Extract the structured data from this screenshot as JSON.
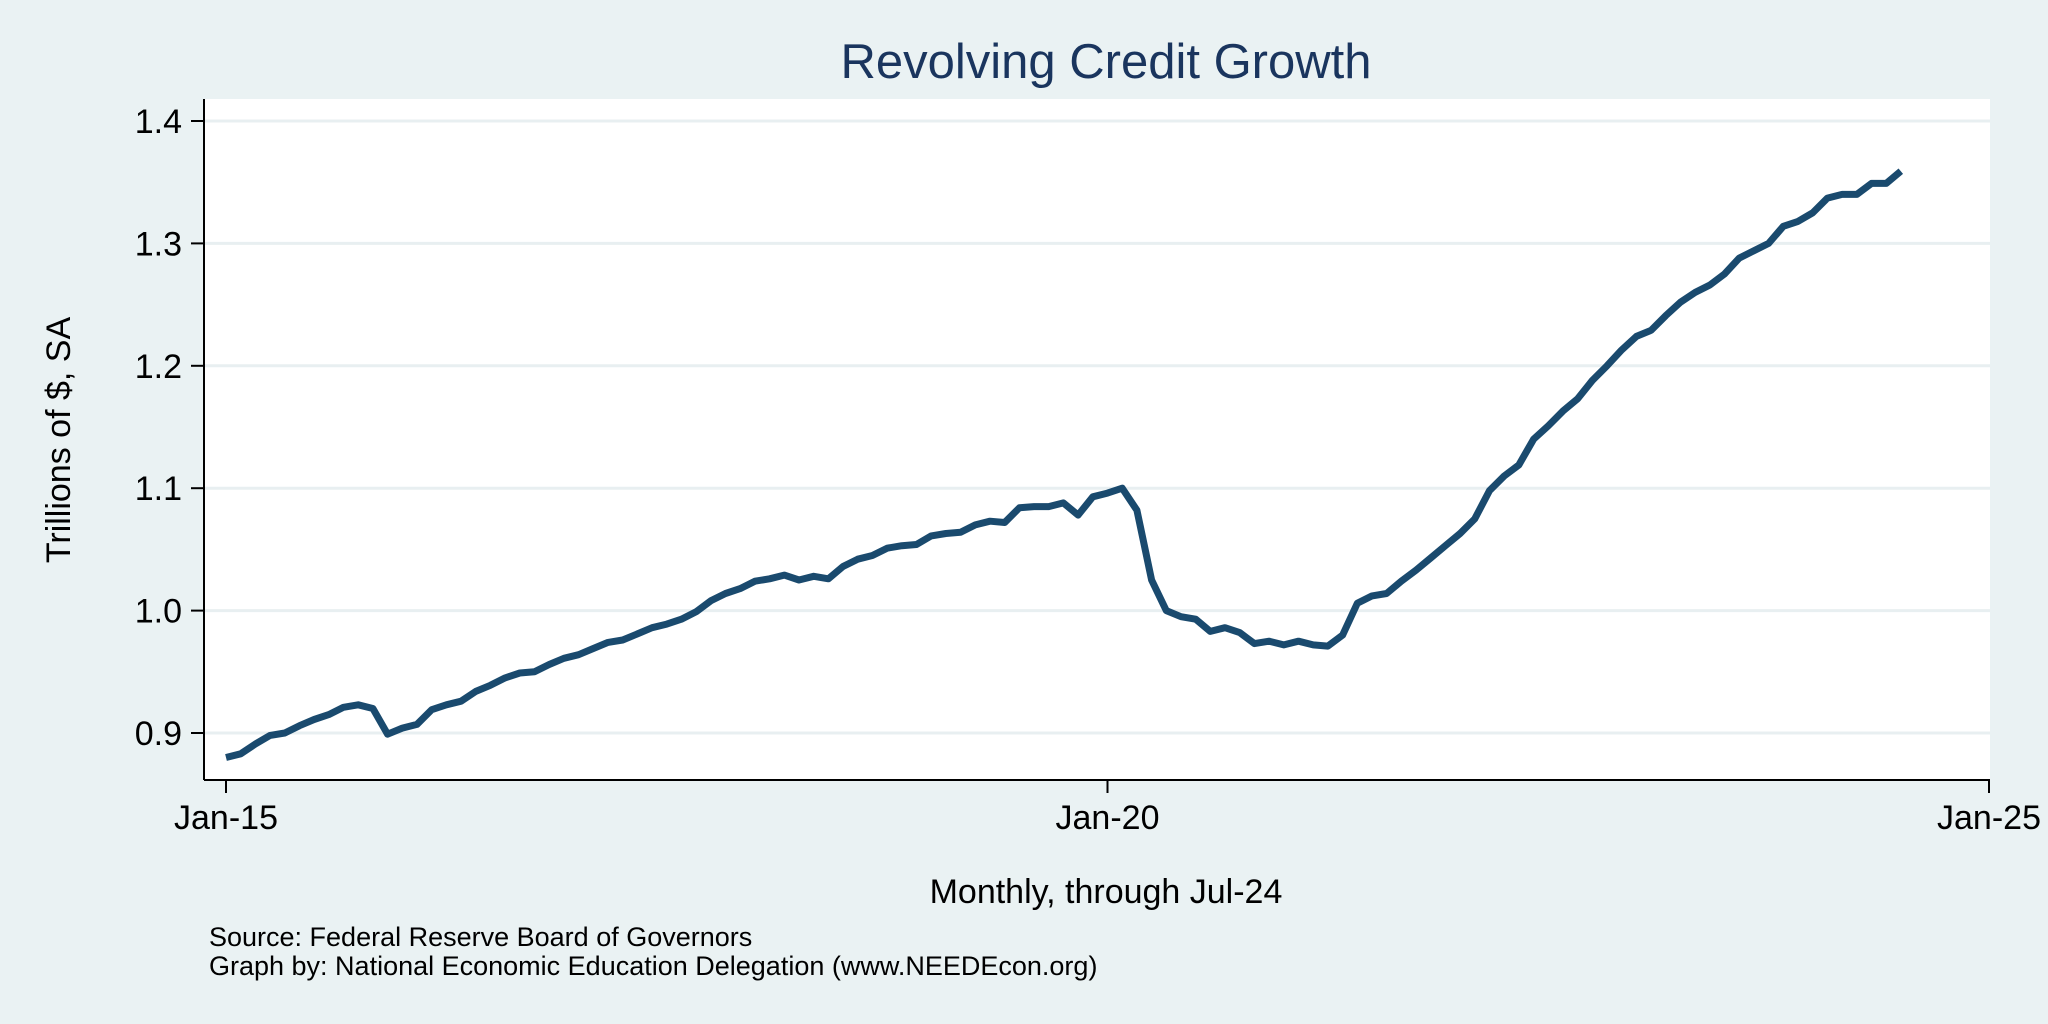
{
  "chart_data": {
    "type": "line",
    "title": "Revolving Credit Growth",
    "xlabel": "Monthly, through Jul-24",
    "ylabel": "Trillions of $, SA",
    "notes": [
      "Source: Federal Reserve Board of Governors",
      "Graph by: National Economic Education Delegation (www.NEEDEcon.org)"
    ],
    "ylim": [
      0.86,
      1.42
    ],
    "yticks": [
      0.9,
      1.0,
      1.1,
      1.2,
      1.3,
      1.4
    ],
    "yticklabels": [
      "0.9",
      "1.0",
      "1.1",
      "1.2",
      "1.3",
      "1.4"
    ],
    "xlim": [
      "Jan-15",
      "Jan-25"
    ],
    "xticks": [
      "Jan-15",
      "Jan-20",
      "Jan-25"
    ],
    "grid": true,
    "legend": "none",
    "colors": {
      "background": "#eaf2f3",
      "plot_background": "#ffffff",
      "line": "#1a4a6e",
      "grid": "#e8eff1",
      "title": "#1a355e"
    },
    "series": [
      {
        "x": [
          "Jan-15",
          "Feb-15",
          "Mar-15",
          "Apr-15",
          "May-15",
          "Jun-15",
          "Jul-15",
          "Aug-15",
          "Sep-15",
          "Oct-15",
          "Nov-15",
          "Dec-15",
          "Jan-16",
          "Feb-16",
          "Mar-16",
          "Apr-16",
          "May-16",
          "Jun-16",
          "Jul-16",
          "Aug-16",
          "Sep-16",
          "Oct-16",
          "Nov-16",
          "Dec-16",
          "Jan-17",
          "Feb-17",
          "Mar-17",
          "Apr-17",
          "May-17",
          "Jun-17",
          "Jul-17",
          "Aug-17",
          "Sep-17",
          "Oct-17",
          "Nov-17",
          "Dec-17",
          "Jan-18",
          "Feb-18",
          "Mar-18",
          "Apr-18",
          "May-18",
          "Jun-18",
          "Jul-18",
          "Aug-18",
          "Sep-18",
          "Oct-18",
          "Nov-18",
          "Dec-18",
          "Jan-19",
          "Feb-19",
          "Mar-19",
          "Apr-19",
          "May-19",
          "Jun-19",
          "Jul-19",
          "Aug-19",
          "Sep-19",
          "Oct-19",
          "Nov-19",
          "Dec-19",
          "Jan-20",
          "Feb-20",
          "Mar-20",
          "Apr-20",
          "May-20",
          "Jun-20",
          "Jul-20",
          "Aug-20",
          "Sep-20",
          "Oct-20",
          "Nov-20",
          "Dec-20",
          "Jan-21",
          "Feb-21",
          "Mar-21",
          "Apr-21",
          "May-21",
          "Jun-21",
          "Jul-21",
          "Aug-21",
          "Sep-21",
          "Oct-21",
          "Nov-21",
          "Dec-21",
          "Jan-22",
          "Feb-22",
          "Mar-22",
          "Apr-22",
          "May-22",
          "Jun-22",
          "Jul-22",
          "Aug-22",
          "Sep-22",
          "Oct-22",
          "Nov-22",
          "Dec-22",
          "Jan-23",
          "Feb-23",
          "Mar-23",
          "Apr-23",
          "May-23",
          "Jun-23",
          "Jul-23",
          "Aug-23",
          "Sep-23",
          "Oct-23",
          "Nov-23",
          "Dec-23",
          "Jan-24",
          "Feb-24",
          "Mar-24",
          "Apr-24",
          "May-24",
          "Jun-24",
          "Jul-24"
        ],
        "values": [
          0.88,
          0.883,
          0.891,
          0.898,
          0.9,
          0.906,
          0.911,
          0.915,
          0.921,
          0.923,
          0.92,
          0.899,
          0.904,
          0.907,
          0.919,
          0.923,
          0.926,
          0.934,
          0.939,
          0.945,
          0.949,
          0.95,
          0.956,
          0.961,
          0.964,
          0.969,
          0.974,
          0.976,
          0.981,
          0.986,
          0.989,
          0.993,
          0.999,
          1.008,
          1.014,
          1.018,
          1.024,
          1.026,
          1.029,
          1.025,
          1.028,
          1.026,
          1.036,
          1.042,
          1.045,
          1.051,
          1.053,
          1.054,
          1.061,
          1.063,
          1.064,
          1.07,
          1.073,
          1.072,
          1.084,
          1.085,
          1.085,
          1.088,
          1.078,
          1.093,
          1.096,
          1.1,
          1.082,
          1.025,
          1.0,
          0.995,
          0.993,
          0.983,
          0.986,
          0.982,
          0.973,
          0.975,
          0.972,
          0.975,
          0.972,
          0.971,
          0.98,
          1.006,
          1.012,
          1.014,
          1.024,
          1.033,
          1.043,
          1.053,
          1.063,
          1.075,
          1.098,
          1.11,
          1.119,
          1.14,
          1.151,
          1.163,
          1.173,
          1.188,
          1.2,
          1.213,
          1.224,
          1.229,
          1.241,
          1.252,
          1.26,
          1.266,
          1.275,
          1.288,
          1.294,
          1.3,
          1.314,
          1.318,
          1.325,
          1.337,
          1.34,
          1.34,
          1.349,
          1.349,
          1.359
        ]
      }
    ]
  }
}
